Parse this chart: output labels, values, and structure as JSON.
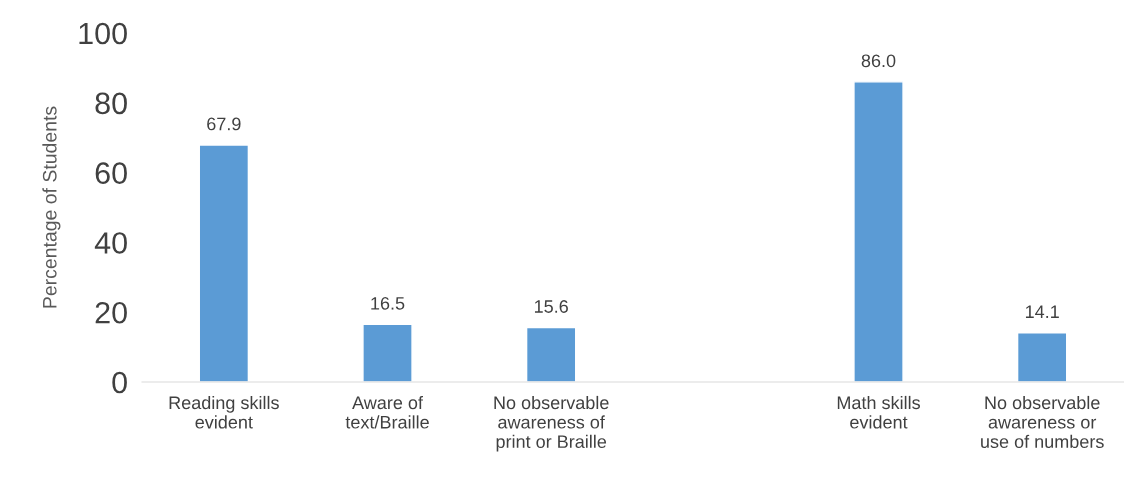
{
  "chart_data": {
    "type": "bar",
    "ylabel": "Percentage of Students",
    "categories": [
      "Reading skills\nevident",
      "Aware of\ntext/Braille",
      "No observable\nawareness of\nprint or Braille",
      null,
      "Math skills\nevident",
      "No observable\nawareness or\nuse of numbers"
    ],
    "values": [
      67.9,
      16.5,
      15.6,
      null,
      86.0,
      14.1
    ],
    "value_labels": [
      "67.9",
      "16.5",
      "15.6",
      null,
      "86.0",
      "14.1"
    ],
    "color": "#5b9bd5",
    "ylim": [
      0,
      100
    ],
    "yticks": [
      0,
      20,
      40,
      60,
      80,
      100
    ],
    "grid": false,
    "legend": false
  }
}
